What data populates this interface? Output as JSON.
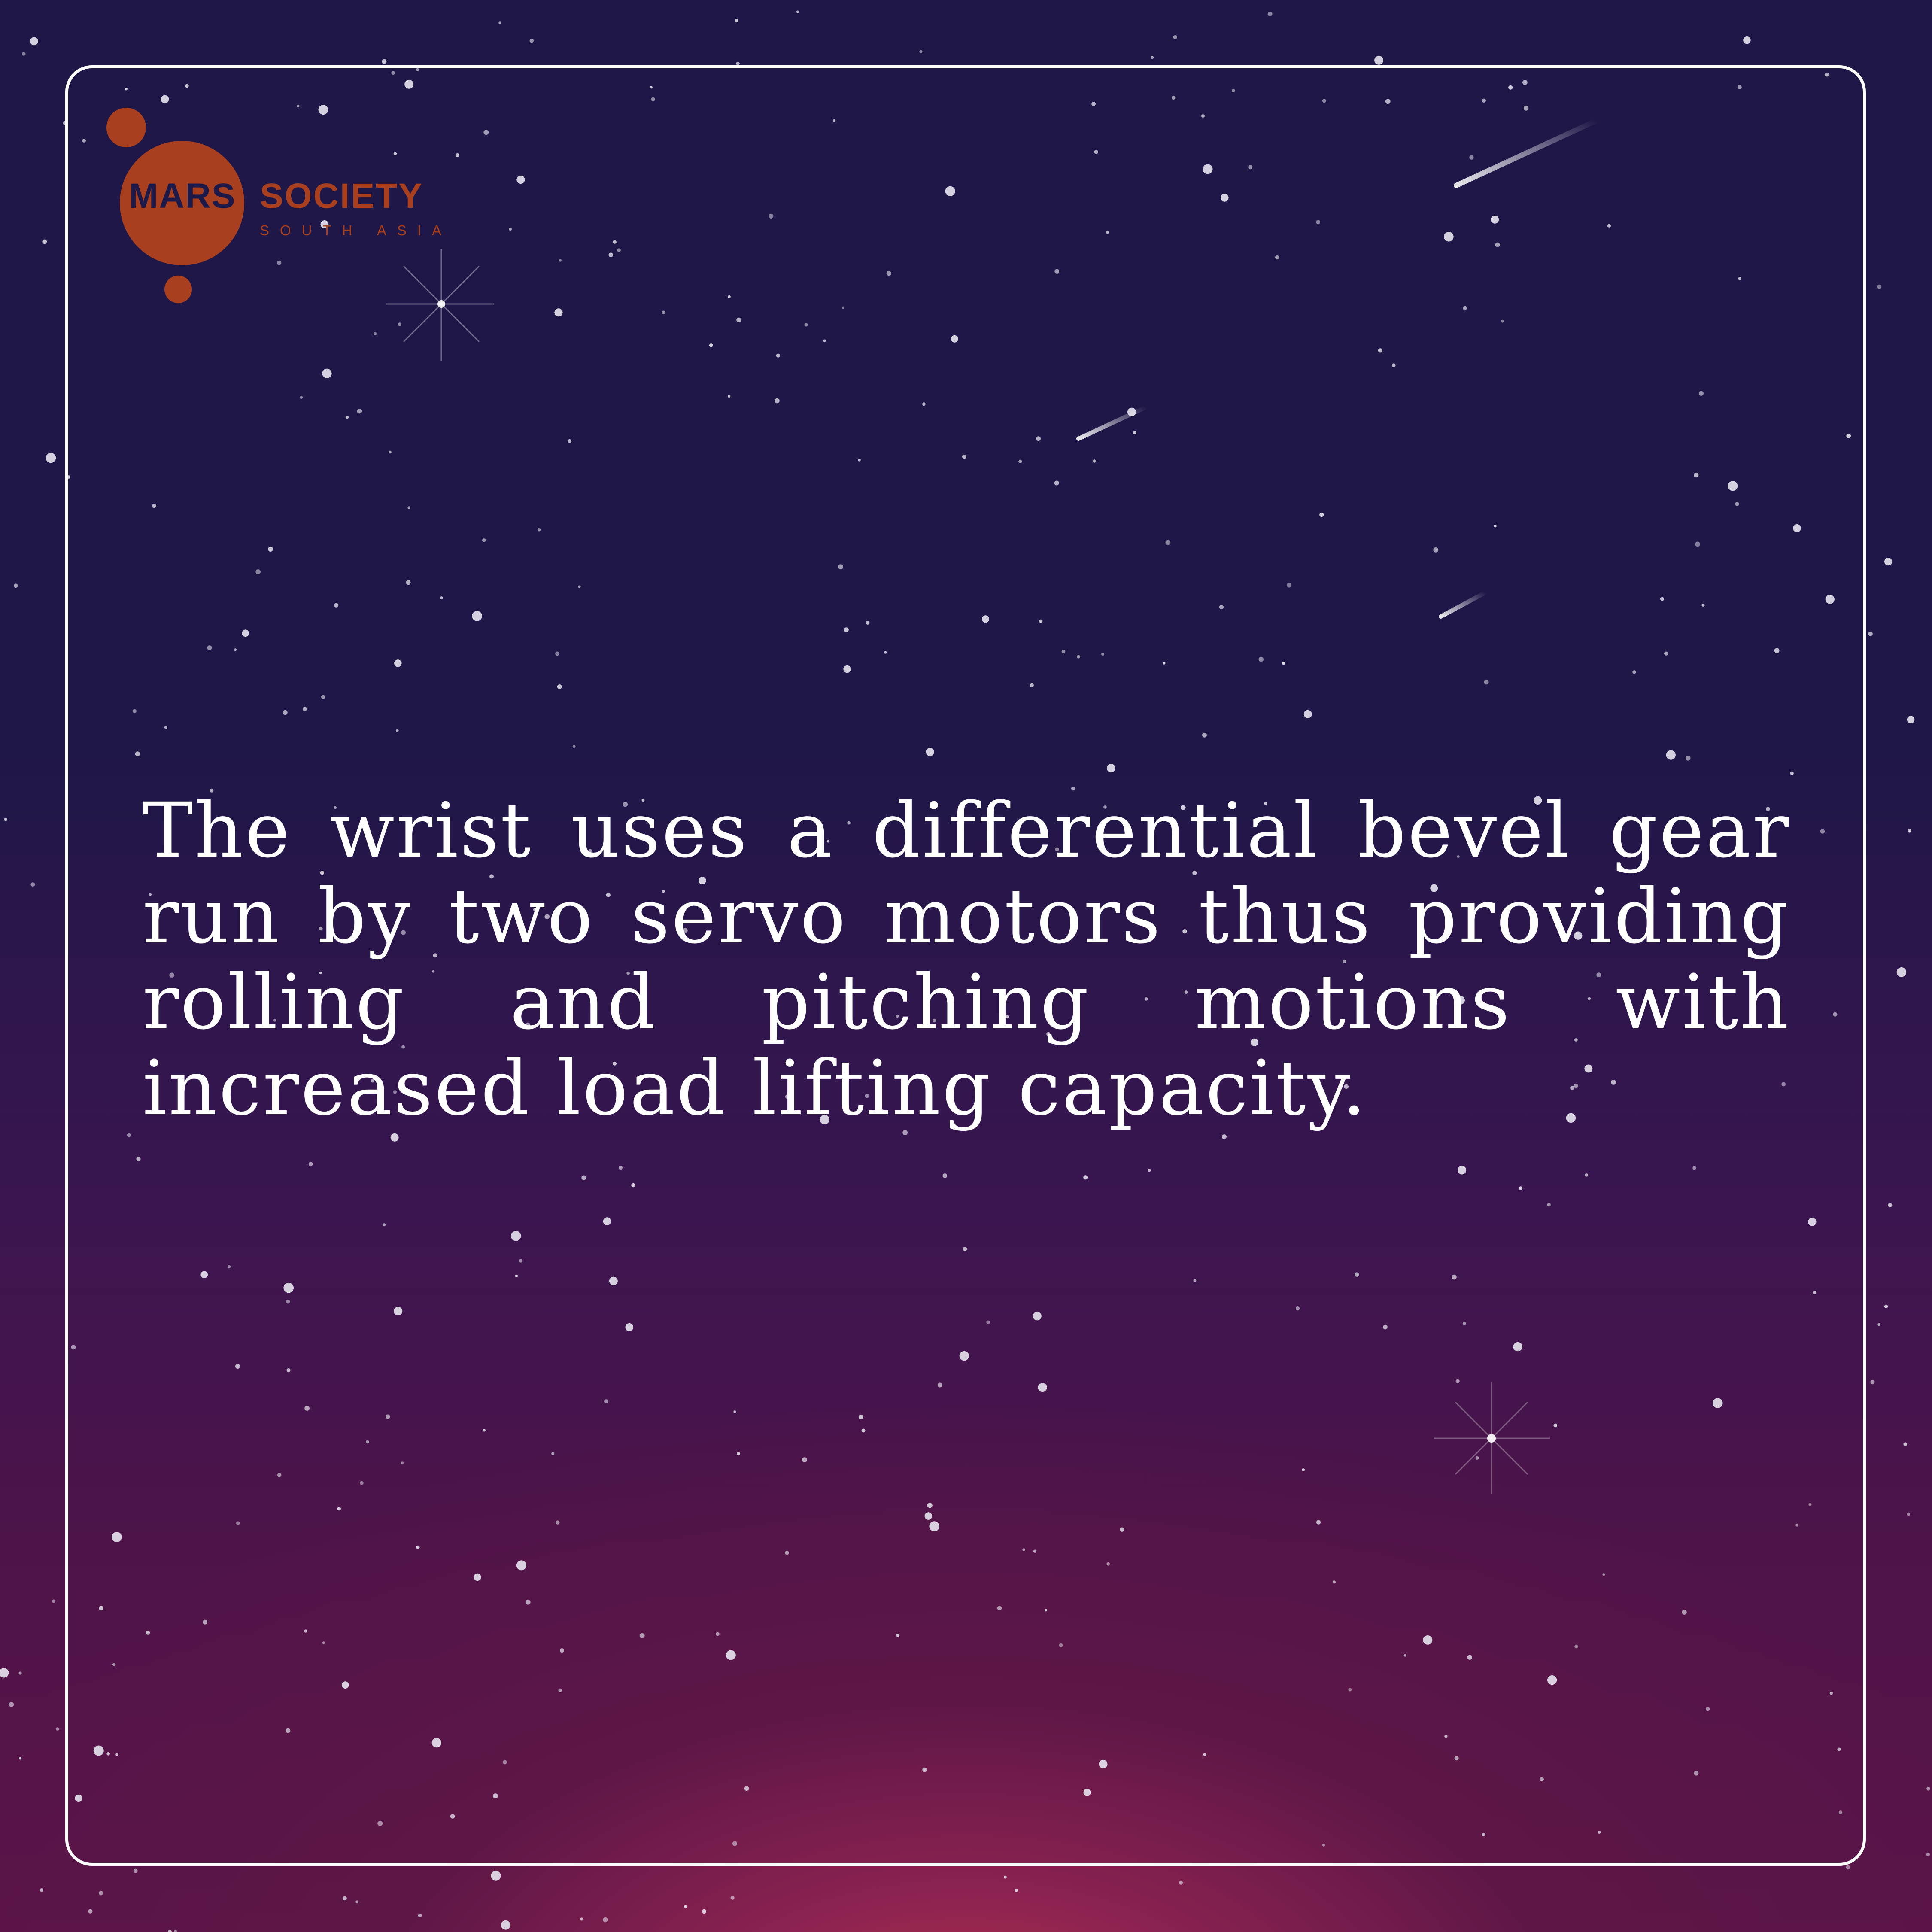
{
  "brand": {
    "name_part1": "MARS",
    "name_part2": "SOCIETY",
    "tagline": "SOUTH ASIA",
    "logo_color": "#a8401f",
    "logo_text_dark": "#1d1a4a"
  },
  "content": {
    "paragraph": "The wrist uses a differential bevel gear run by two servo motors thus providing rolling and pitching motions with increased load lifting capacity."
  },
  "colors": {
    "background_top": "#1e1747",
    "background_bottom_glow": "#b93350",
    "frame_border": "#ffffff",
    "text": "#ffffff"
  },
  "decorations": {
    "background": "starry-night-sky",
    "shooting_stars": 3,
    "sparkle_stars": 2
  }
}
